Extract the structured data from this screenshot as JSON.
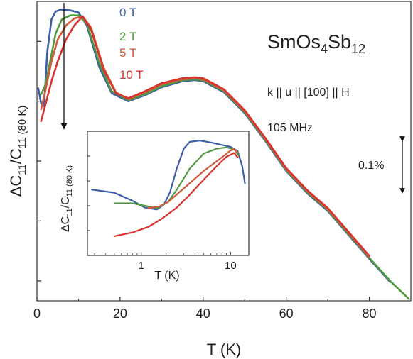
{
  "chart_data": {
    "type": "line",
    "x_tick_labels": [
      "0",
      "20",
      "40",
      "60",
      "80"
    ],
    "x_ticks": [
      0,
      20,
      40,
      60,
      80
    ],
    "xlim": [
      0,
      90
    ],
    "ylim": [
      -1.0,
      0.5
    ],
    "xlabel": "T (K)",
    "ylabel": "ΔC11/C11 (80 K)",
    "ylabel_parts": {
      "main": "ΔC",
      "sub1": "11",
      "sep": "/C",
      "sub2": "11 (80 K)"
    },
    "sample": {
      "base": "SmOs",
      "sub1": "4",
      "mid": "Sb",
      "sub2": "12"
    },
    "annotations": [
      "k || u || [100] || H",
      "105 MHz"
    ],
    "scale_bar_label": "0.1%",
    "scale_bar_value": 0.1,
    "grid": false,
    "legend_position": "top-center",
    "series": [
      {
        "name": "0 T",
        "color": "#3e5ea8",
        "points": [
          [
            0.3,
            0.065
          ],
          [
            1.0,
            -0.01
          ],
          [
            1.7,
            -0.025
          ],
          [
            2.5,
            0.25
          ],
          [
            3.5,
            0.41
          ],
          [
            4.5,
            0.45
          ],
          [
            6,
            0.46
          ],
          [
            8,
            0.455
          ],
          [
            10,
            0.445
          ],
          [
            12,
            0.38
          ],
          [
            15,
            0.17
          ],
          [
            18,
            0.04
          ],
          [
            22,
            0.0
          ],
          [
            26,
            0.03
          ],
          [
            30,
            0.07
          ],
          [
            35,
            0.1
          ],
          [
            38,
            0.106
          ],
          [
            40,
            0.1
          ],
          [
            45,
            0.045
          ],
          [
            50,
            -0.06
          ],
          [
            55,
            -0.2
          ],
          [
            60,
            -0.35
          ],
          [
            65,
            -0.46
          ],
          [
            70,
            -0.55
          ],
          [
            75,
            -0.67
          ],
          [
            80,
            -0.79
          ],
          [
            85,
            -0.905
          ]
        ]
      },
      {
        "name": "2 T",
        "color": "#4f9a3c",
        "points": [
          [
            1.0,
            0.035
          ],
          [
            2.0,
            0.08
          ],
          [
            3.0,
            0.18
          ],
          [
            4.5,
            0.34
          ],
          [
            6,
            0.41
          ],
          [
            8,
            0.43
          ],
          [
            10,
            0.43
          ],
          [
            12,
            0.39
          ],
          [
            15,
            0.19
          ],
          [
            18,
            0.05
          ],
          [
            22,
            0.005
          ],
          [
            26,
            0.035
          ],
          [
            30,
            0.075
          ],
          [
            35,
            0.105
          ],
          [
            38,
            0.11
          ],
          [
            40,
            0.105
          ],
          [
            45,
            0.05
          ],
          [
            50,
            -0.055
          ],
          [
            55,
            -0.195
          ],
          [
            60,
            -0.345
          ],
          [
            65,
            -0.455
          ],
          [
            70,
            -0.545
          ],
          [
            75,
            -0.665
          ],
          [
            80,
            -0.785
          ],
          [
            85,
            -0.9
          ],
          [
            89.5,
            -0.99
          ]
        ]
      },
      {
        "name": "5 T",
        "color": "#cf5a3c",
        "points": [
          [
            1.0,
            -0.04
          ],
          [
            2.0,
            0.05
          ],
          [
            3.5,
            0.2
          ],
          [
            5,
            0.31
          ],
          [
            7,
            0.38
          ],
          [
            9,
            0.415
          ],
          [
            11,
            0.425
          ],
          [
            13,
            0.37
          ],
          [
            16,
            0.17
          ],
          [
            19,
            0.045
          ],
          [
            22,
            0.01
          ],
          [
            26,
            0.045
          ],
          [
            30,
            0.085
          ],
          [
            35,
            0.11
          ],
          [
            38,
            0.115
          ],
          [
            40,
            0.11
          ],
          [
            45,
            0.055
          ],
          [
            50,
            -0.05
          ],
          [
            55,
            -0.19
          ],
          [
            60,
            -0.34
          ],
          [
            65,
            -0.45
          ],
          [
            70,
            -0.54
          ],
          [
            75,
            -0.66
          ],
          [
            80,
            -0.78
          ]
        ]
      },
      {
        "name": "10 T",
        "color": "#d8332f",
        "points": [
          [
            1.0,
            -0.1
          ],
          [
            2.0,
            -0.02
          ],
          [
            3.5,
            0.1
          ],
          [
            5,
            0.2
          ],
          [
            7,
            0.31
          ],
          [
            9,
            0.38
          ],
          [
            11,
            0.425
          ],
          [
            13,
            0.36
          ],
          [
            16,
            0.16
          ],
          [
            19,
            0.04
          ],
          [
            22,
            0.015
          ],
          [
            26,
            0.05
          ],
          [
            30,
            0.09
          ],
          [
            35,
            0.115
          ],
          [
            38,
            0.12
          ],
          [
            40,
            0.115
          ],
          [
            45,
            0.06
          ],
          [
            50,
            -0.045
          ],
          [
            55,
            -0.185
          ],
          [
            60,
            -0.335
          ],
          [
            65,
            -0.445
          ],
          [
            70,
            -0.535
          ],
          [
            75,
            -0.655
          ],
          [
            80,
            -0.775
          ]
        ]
      }
    ],
    "inset": {
      "type": "line",
      "log_x": true,
      "xlim": [
        0.25,
        16
      ],
      "ylim": [
        0,
        10
      ],
      "x_ticks": [
        1,
        10
      ],
      "x_tick_labels": [
        "1",
        "10"
      ],
      "xlabel": "T (K)",
      "ylabel": "ΔC11/C11 (80 K)",
      "ylabel_parts": {
        "main": "ΔC",
        "sub1": "11",
        "sep": "/C",
        "sub2": "11 (80 K)"
      },
      "series": [
        {
          "name": "0 T",
          "color": "#3e5ea8",
          "points": [
            [
              0.28,
              5.3
            ],
            [
              0.5,
              5.05
            ],
            [
              0.8,
              4.4
            ],
            [
              1.1,
              3.85
            ],
            [
              1.5,
              3.7
            ],
            [
              1.8,
              4.1
            ],
            [
              2.1,
              5.1
            ],
            [
              2.5,
              7.0
            ],
            [
              3.0,
              8.6
            ],
            [
              3.5,
              9.15
            ],
            [
              4.5,
              9.25
            ],
            [
              6,
              9.1
            ],
            [
              8,
              8.9
            ],
            [
              10,
              8.75
            ],
            [
              12,
              8.4
            ],
            [
              13.5,
              7.2
            ],
            [
              14.5,
              5.8
            ]
          ]
        },
        {
          "name": "2 T",
          "color": "#4f9a3c",
          "points": [
            [
              0.5,
              4.2
            ],
            [
              0.8,
              4.2
            ],
            [
              1.1,
              4.0
            ],
            [
              1.5,
              3.8
            ],
            [
              2.0,
              4.3
            ],
            [
              2.5,
              5.3
            ],
            [
              3.5,
              7.0
            ],
            [
              5,
              8.2
            ],
            [
              7,
              8.6
            ],
            [
              9,
              8.7
            ],
            [
              11,
              8.55
            ],
            [
              12.5,
              8.0
            ]
          ]
        },
        {
          "name": "5 T",
          "color": "#cf5a3c",
          "points": [
            [
              1.2,
              3.8
            ],
            [
              1.6,
              3.95
            ],
            [
              2.0,
              4.3
            ],
            [
              3.0,
              5.4
            ],
            [
              5,
              6.8
            ],
            [
              8,
              7.9
            ],
            [
              10,
              8.45
            ],
            [
              11,
              8.55
            ],
            [
              12,
              8.3
            ]
          ]
        },
        {
          "name": "10 T",
          "color": "#d8332f",
          "points": [
            [
              0.5,
              1.55
            ],
            [
              0.8,
              1.85
            ],
            [
              1.2,
              2.3
            ],
            [
              1.7,
              2.95
            ],
            [
              2.5,
              3.85
            ],
            [
              3.5,
              4.9
            ],
            [
              5,
              6.1
            ],
            [
              7,
              7.2
            ],
            [
              9,
              7.95
            ],
            [
              11,
              8.25
            ],
            [
              12,
              7.9
            ]
          ]
        }
      ]
    }
  }
}
